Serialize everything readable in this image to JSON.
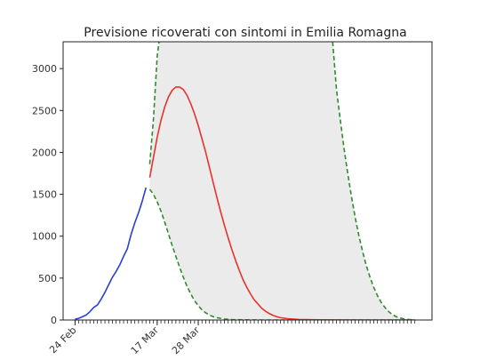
{
  "chart_data": {
    "type": "line",
    "title": "Previsione ricoverati con sintomi in Emilia Romagna",
    "xlabel": "",
    "ylabel": "",
    "ylim": [
      0,
      3320
    ],
    "yticks": [
      0,
      500,
      1000,
      1500,
      2000,
      2500,
      3000
    ],
    "x_unit": "days since 24 Feb",
    "xlim": [
      -3.2,
      95.6
    ],
    "xticks": [
      {
        "label": "24 Feb",
        "day": 0
      },
      {
        "label": "17 Mar",
        "day": 22
      },
      {
        "label": "28 Mar",
        "day": 33
      }
    ],
    "minor_tick_days_range": [
      0,
      91
    ],
    "grid": false,
    "series": [
      {
        "style": "solid",
        "color": "#2a3fcf",
        "points": [
          [
            0,
            10
          ],
          [
            1,
            20
          ],
          [
            2,
            40
          ],
          [
            3,
            60
          ],
          [
            4,
            100
          ],
          [
            5,
            150
          ],
          [
            6,
            180
          ],
          [
            7,
            250
          ],
          [
            8,
            330
          ],
          [
            9,
            420
          ],
          [
            10,
            510
          ],
          [
            11,
            580
          ],
          [
            12,
            660
          ],
          [
            13,
            760
          ],
          [
            14,
            850
          ],
          [
            15,
            1020
          ],
          [
            16,
            1160
          ],
          [
            17,
            1280
          ],
          [
            18,
            1420
          ],
          [
            19,
            1580
          ]
        ]
      },
      {
        "style": "solid",
        "color": "#e8322e",
        "points": [
          [
            20,
            1700
          ],
          [
            21,
            1940
          ],
          [
            22,
            2180
          ],
          [
            23,
            2380
          ],
          [
            24,
            2540
          ],
          [
            25,
            2660
          ],
          [
            26,
            2740
          ],
          [
            27,
            2780
          ],
          [
            28,
            2780
          ],
          [
            29,
            2750
          ],
          [
            30,
            2680
          ],
          [
            31,
            2580
          ],
          [
            32,
            2460
          ],
          [
            33,
            2320
          ],
          [
            34,
            2160
          ],
          [
            35,
            2000
          ],
          [
            36,
            1820
          ],
          [
            37,
            1640
          ],
          [
            38,
            1460
          ],
          [
            39,
            1290
          ],
          [
            40,
            1130
          ],
          [
            41,
            980
          ],
          [
            42,
            840
          ],
          [
            43,
            710
          ],
          [
            44,
            590
          ],
          [
            45,
            480
          ],
          [
            46,
            390
          ],
          [
            47,
            310
          ],
          [
            48,
            240
          ],
          [
            49,
            190
          ],
          [
            50,
            140
          ],
          [
            51,
            105
          ],
          [
            52,
            78
          ],
          [
            53,
            56
          ],
          [
            54,
            40
          ],
          [
            55,
            28
          ],
          [
            57,
            15
          ],
          [
            60,
            6
          ],
          [
            65,
            2
          ],
          [
            70,
            1
          ],
          [
            80,
            0
          ],
          [
            91,
            0
          ]
        ]
      },
      {
        "style": "dashed",
        "color": "#2e8b2e",
        "points": [
          [
            20,
            1560
          ],
          [
            21,
            1500
          ],
          [
            22,
            1410
          ],
          [
            23,
            1300
          ],
          [
            24,
            1170
          ],
          [
            25,
            1030
          ],
          [
            26,
            890
          ],
          [
            27,
            760
          ],
          [
            28,
            630
          ],
          [
            29,
            510
          ],
          [
            30,
            400
          ],
          [
            31,
            310
          ],
          [
            32,
            230
          ],
          [
            33,
            170
          ],
          [
            34,
            120
          ],
          [
            35,
            85
          ],
          [
            36,
            58
          ],
          [
            37,
            40
          ],
          [
            38,
            27
          ],
          [
            40,
            12
          ],
          [
            42,
            5
          ],
          [
            45,
            2
          ],
          [
            50,
            0
          ],
          [
            91,
            0
          ]
        ]
      },
      {
        "style": "dashed",
        "color": "#2e8b2e",
        "points": [
          [
            20,
            1860
          ],
          [
            21,
            2400
          ],
          [
            22,
            3150
          ],
          [
            22.5,
            3320
          ]
        ]
      },
      {
        "style": "dashed",
        "color": "#2e8b2e",
        "points": [
          [
            69,
            3320
          ],
          [
            70,
            2760
          ],
          [
            71,
            2400
          ],
          [
            72,
            2060
          ],
          [
            73,
            1760
          ],
          [
            74,
            1480
          ],
          [
            75,
            1230
          ],
          [
            76,
            1010
          ],
          [
            77,
            820
          ],
          [
            78,
            650
          ],
          [
            79,
            510
          ],
          [
            80,
            390
          ],
          [
            81,
            290
          ],
          [
            82,
            210
          ],
          [
            83,
            150
          ],
          [
            84,
            100
          ],
          [
            85,
            65
          ],
          [
            86,
            40
          ],
          [
            87,
            24
          ],
          [
            88,
            14
          ],
          [
            89,
            8
          ],
          [
            90,
            4
          ],
          [
            91,
            2
          ]
        ]
      }
    ],
    "bands": [
      {
        "color": "#ebebeb",
        "points_top": [
          [
            20,
            1860
          ],
          [
            21,
            2400
          ],
          [
            22,
            3150
          ],
          [
            22.5,
            3320
          ],
          [
            69,
            3320
          ],
          [
            70,
            2760
          ],
          [
            71,
            2400
          ],
          [
            72,
            2060
          ],
          [
            73,
            1760
          ],
          [
            74,
            1480
          ],
          [
            75,
            1230
          ],
          [
            76,
            1010
          ],
          [
            77,
            820
          ],
          [
            78,
            650
          ],
          [
            79,
            510
          ],
          [
            80,
            390
          ],
          [
            81,
            290
          ],
          [
            82,
            210
          ],
          [
            83,
            150
          ],
          [
            84,
            100
          ],
          [
            85,
            65
          ],
          [
            86,
            40
          ],
          [
            87,
            24
          ],
          [
            88,
            14
          ],
          [
            89,
            8
          ],
          [
            90,
            4
          ],
          [
            91,
            2
          ]
        ],
        "points_bottom": [
          [
            20,
            1560
          ],
          [
            21,
            1500
          ],
          [
            22,
            1410
          ],
          [
            23,
            1300
          ],
          [
            24,
            1170
          ],
          [
            25,
            1030
          ],
          [
            26,
            890
          ],
          [
            27,
            760
          ],
          [
            28,
            630
          ],
          [
            29,
            510
          ],
          [
            30,
            400
          ],
          [
            31,
            310
          ],
          [
            32,
            230
          ],
          [
            33,
            170
          ],
          [
            34,
            120
          ],
          [
            35,
            85
          ],
          [
            36,
            58
          ],
          [
            37,
            40
          ],
          [
            38,
            27
          ],
          [
            40,
            12
          ],
          [
            42,
            5
          ],
          [
            45,
            2
          ],
          [
            50,
            0
          ],
          [
            91,
            0
          ]
        ]
      }
    ]
  }
}
